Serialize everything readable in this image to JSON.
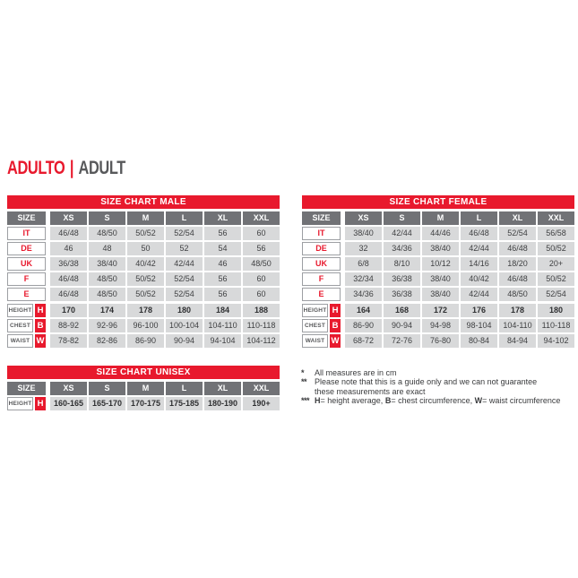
{
  "title": {
    "primary": "ADULTO",
    "separator": "|",
    "secondary": "ADULT"
  },
  "colors": {
    "accent_red": "#e8192d",
    "header_gray": "#717276",
    "cell_gray": "#d8d9da",
    "text_dark": "#3f4042",
    "label_gray": "#58595b",
    "box_border": "#9d9fa3"
  },
  "tables": [
    {
      "title": "SIZE CHART MALE",
      "size_label": "SIZE",
      "columns": [
        "XS",
        "S",
        "M",
        "L",
        "XL",
        "XXL"
      ],
      "rows": [
        {
          "type": "country",
          "label": "IT",
          "values": [
            "46/48",
            "48/50",
            "50/52",
            "52/54",
            "56",
            "60"
          ]
        },
        {
          "type": "country",
          "label": "DE",
          "values": [
            "46",
            "48",
            "50",
            "52",
            "54",
            "56"
          ]
        },
        {
          "type": "country",
          "label": "UK",
          "values": [
            "36/38",
            "38/40",
            "40/42",
            "42/44",
            "46",
            "48/50"
          ]
        },
        {
          "type": "country",
          "label": "F",
          "values": [
            "46/48",
            "48/50",
            "50/52",
            "52/54",
            "56",
            "60"
          ]
        },
        {
          "type": "country",
          "label": "E",
          "values": [
            "46/48",
            "48/50",
            "50/52",
            "52/54",
            "56",
            "60"
          ]
        },
        {
          "type": "measure",
          "label": "HEIGHT",
          "badge": "H",
          "bold": true,
          "gap_before": true,
          "values": [
            "170",
            "174",
            "178",
            "180",
            "184",
            "188"
          ]
        },
        {
          "type": "measure",
          "label": "CHEST",
          "badge": "B",
          "bold": false,
          "values": [
            "88-92",
            "92-96",
            "96-100",
            "100-104",
            "104-110",
            "110-118"
          ]
        },
        {
          "type": "measure",
          "label": "WAIST",
          "badge": "W",
          "bold": false,
          "values": [
            "78-82",
            "82-86",
            "86-90",
            "90-94",
            "94-104",
            "104-112"
          ]
        }
      ]
    },
    {
      "title": "SIZE CHART FEMALE",
      "size_label": "SIZE",
      "columns": [
        "XS",
        "S",
        "M",
        "L",
        "XL",
        "XXL"
      ],
      "rows": [
        {
          "type": "country",
          "label": "IT",
          "values": [
            "38/40",
            "42/44",
            "44/46",
            "46/48",
            "52/54",
            "56/58"
          ]
        },
        {
          "type": "country",
          "label": "DE",
          "values": [
            "32",
            "34/36",
            "38/40",
            "42/44",
            "46/48",
            "50/52"
          ]
        },
        {
          "type": "country",
          "label": "UK",
          "values": [
            "6/8",
            "8/10",
            "10/12",
            "14/16",
            "18/20",
            "20+"
          ]
        },
        {
          "type": "country",
          "label": "F",
          "values": [
            "32/34",
            "36/38",
            "38/40",
            "40/42",
            "46/48",
            "50/52"
          ]
        },
        {
          "type": "country",
          "label": "E",
          "values": [
            "34/36",
            "36/38",
            "38/40",
            "42/44",
            "48/50",
            "52/54"
          ]
        },
        {
          "type": "measure",
          "label": "HEIGHT",
          "badge": "H",
          "bold": true,
          "gap_before": true,
          "values": [
            "164",
            "168",
            "172",
            "176",
            "178",
            "180"
          ]
        },
        {
          "type": "measure",
          "label": "CHEST",
          "badge": "B",
          "bold": false,
          "values": [
            "86-90",
            "90-94",
            "94-98",
            "98-104",
            "104-110",
            "110-118"
          ]
        },
        {
          "type": "measure",
          "label": "WAIST",
          "badge": "W",
          "bold": false,
          "values": [
            "68-72",
            "72-76",
            "76-80",
            "80-84",
            "84-94",
            "94-102"
          ]
        }
      ]
    },
    {
      "title": "SIZE CHART UNISEX",
      "size_label": "SIZE",
      "columns": [
        "XS",
        "S",
        "M",
        "L",
        "XL",
        "XXL"
      ],
      "rows": [
        {
          "type": "measure",
          "label": "HEIGHT",
          "badge": "H",
          "bold": true,
          "values": [
            "160-165",
            "165-170",
            "170-175",
            "175-185",
            "180-190",
            "190+"
          ]
        }
      ]
    }
  ],
  "footnotes": [
    {
      "marker": "*",
      "segments": [
        {
          "text": "All measures are in cm"
        }
      ]
    },
    {
      "marker": "**",
      "segments": [
        {
          "text": "Please note that this is a guide only and we can not guarantee"
        },
        {
          "break": true
        },
        {
          "text": "these measurements are exact"
        }
      ]
    },
    {
      "marker": "***",
      "segments": [
        {
          "text": "H",
          "bold": true
        },
        {
          "text": "= height average, "
        },
        {
          "text": "B",
          "bold": true
        },
        {
          "text": "= chest circumference, "
        },
        {
          "text": "W",
          "bold": true
        },
        {
          "text": "= waist circumference"
        }
      ]
    }
  ]
}
